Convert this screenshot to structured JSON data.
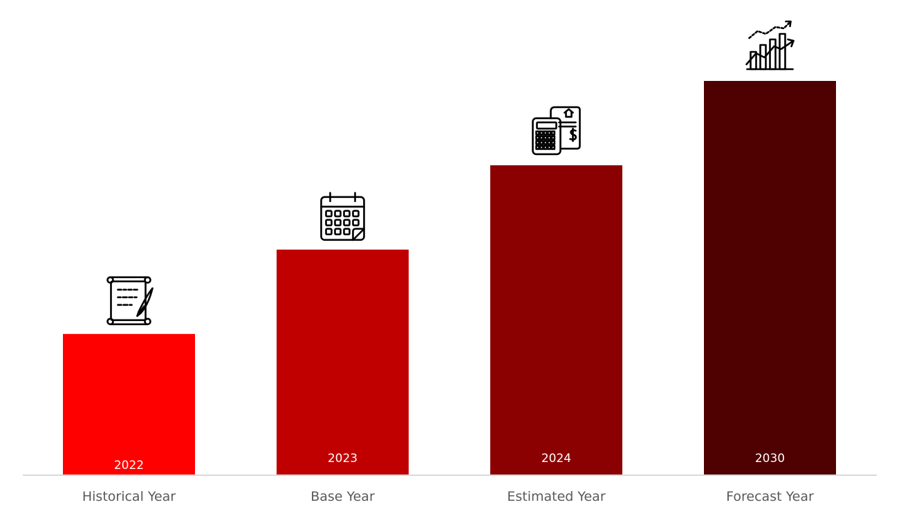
{
  "chart_data": {
    "type": "bar",
    "categories": [
      "Historical Year",
      "Base Year",
      "Estimated Year",
      "Forecast Year"
    ],
    "bar_labels": [
      "2022",
      "2023",
      "2024",
      "2030"
    ],
    "values": [
      1,
      1.6,
      2.2,
      2.8
    ],
    "colors": [
      "#ff0000",
      "#c00000",
      "#8b0000",
      "#4f0000"
    ],
    "icons": [
      "scroll-quill-icon",
      "calendar-icon",
      "calculator-invoice-icon",
      "growth-chart-icon"
    ],
    "title": "",
    "xlabel": "",
    "ylabel": "",
    "ylim": [
      0,
      3
    ],
    "grid": false,
    "legend": "none"
  }
}
